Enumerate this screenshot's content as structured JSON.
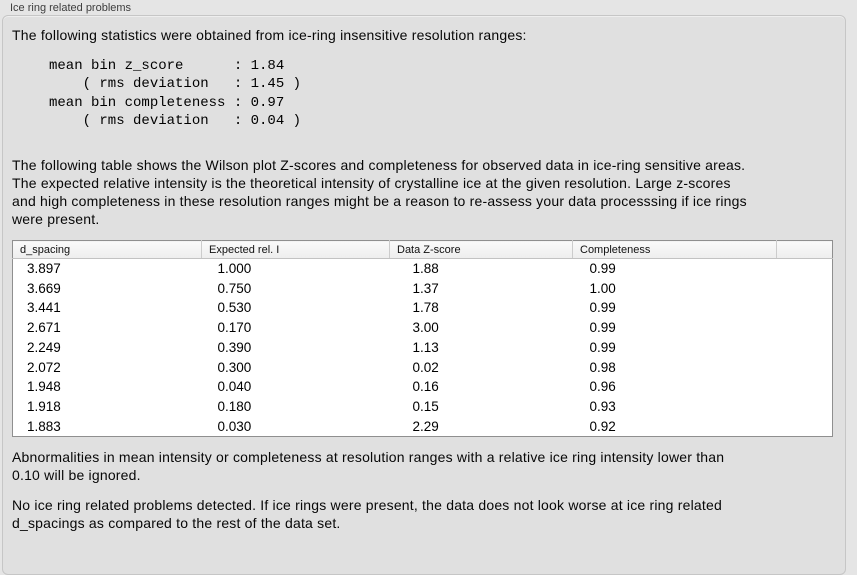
{
  "panel": {
    "title": "Ice ring related problems"
  },
  "statistics": {
    "intro": "The following statistics were obtained from ice-ring insensitive resolution ranges:",
    "values_block": "mean bin z_score      : 1.84\n    ( rms deviation   : 1.45 )\nmean bin completeness : 0.97\n    ( rms deviation   : 0.04 )",
    "mean_bin_z_score": "1.84",
    "z_score_rms_deviation": "1.45",
    "mean_bin_completeness": "0.97",
    "completeness_rms_deviation": "0.04"
  },
  "table_description": "The following table shows the Wilson plot Z-scores and completeness for observed data in ice-ring sensitive areas.\nThe expected relative intensity is the theoretical intensity of crystalline ice at the given resolution. Large z-scores\nand high completeness in these resolution ranges might be a reason to re-assess your data processsing if ice rings\nwere present.",
  "table": {
    "columns": [
      "d_spacing",
      "Expected rel. I",
      "Data Z-score",
      "Completeness"
    ],
    "rows": [
      [
        "3.897",
        "1.000",
        "1.88",
        "0.99"
      ],
      [
        "3.669",
        "0.750",
        "1.37",
        "1.00"
      ],
      [
        "3.441",
        "0.530",
        "1.78",
        "0.99"
      ],
      [
        "2.671",
        "0.170",
        "3.00",
        "0.99"
      ],
      [
        "2.249",
        "0.390",
        "1.13",
        "0.99"
      ],
      [
        "2.072",
        "0.300",
        "0.02",
        "0.98"
      ],
      [
        "1.948",
        "0.040",
        "0.16",
        "0.96"
      ],
      [
        "1.918",
        "0.180",
        "0.15",
        "0.93"
      ],
      [
        "1.883",
        "0.030",
        "2.29",
        "0.92"
      ]
    ]
  },
  "footnotes": {
    "ignore_rule": "Abnormalities in mean intensity or completeness at resolution ranges with a relative ice ring intensity lower than\n0.10 will be ignored.",
    "conclusion": "No ice ring related problems detected. If ice rings were present, the data does not look worse at ice ring related\nd_spacings as compared to the rest of the data set."
  },
  "colors": {
    "page_bg": "#e5e5e5",
    "panel_bg": "#e0e0e0",
    "panel_border": "#c6c6c6",
    "table_bg": "#ffffff",
    "table_border": "#8f8f8f",
    "header_bg": "#f2f2f2",
    "text": "#070707"
  }
}
